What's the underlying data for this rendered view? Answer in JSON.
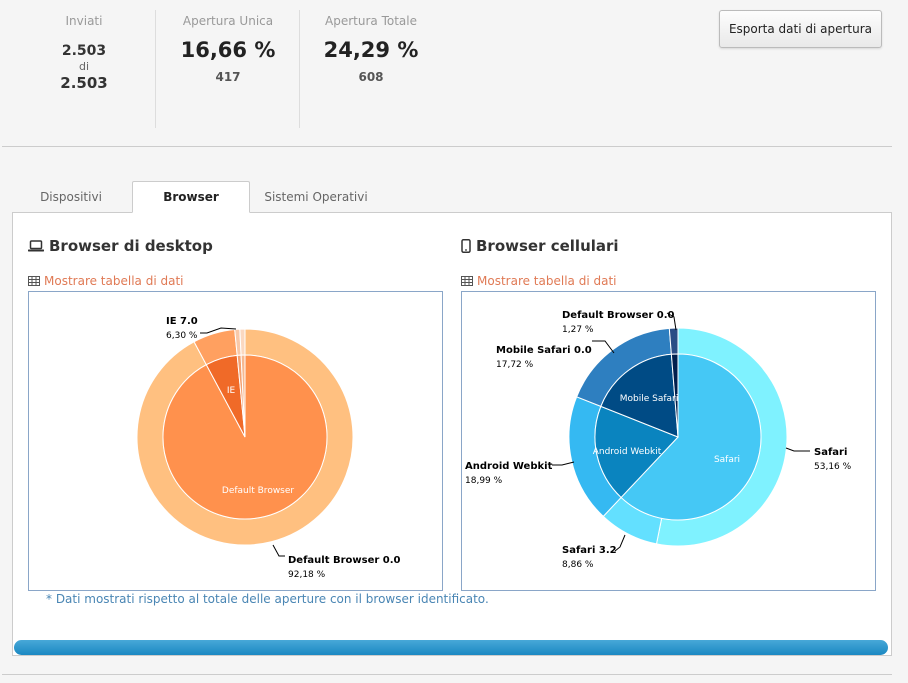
{
  "stats": {
    "sent_label": "Inviati",
    "sent_value": "2.503",
    "sent_of": "di",
    "sent_total": "2.503",
    "unique_label": "Apertura Unica",
    "unique_pct": "16,66 %",
    "unique_count": "417",
    "total_label": "Apertura Totale",
    "total_pct": "24,29 %",
    "total_count": "608"
  },
  "export_button": "Esporta dati di apertura",
  "tabs": [
    {
      "label": "Dispositivi",
      "active": false
    },
    {
      "label": "Browser",
      "active": true
    },
    {
      "label": "Sistemi Operativi",
      "active": false
    }
  ],
  "desktop": {
    "title": "Browser di desktop",
    "icon": "laptop-icon",
    "show_table": "Mostrare tabella di dati"
  },
  "mobile": {
    "title": "Browser cellulari",
    "icon": "mobile-phone-icon",
    "show_table": "Mostrare tabella di dati"
  },
  "note": "* Dati mostrati rispetto al totale delle aperture con il browser identificato.",
  "progress_fraction": 1.0,
  "chart_data": [
    {
      "type": "pie",
      "chart": "desktop",
      "inner": [
        {
          "name": "Default Browser",
          "value": 92.18,
          "color": "#ff914d",
          "label": true
        },
        {
          "name": "IE",
          "value": 6.3,
          "color": "#f06a28",
          "label": true
        },
        {
          "name": "",
          "value": 0.76,
          "color": "#f4a070",
          "label": false
        },
        {
          "name": "",
          "value": 0.76,
          "color": "#f7b890",
          "label": false
        }
      ],
      "outer": [
        {
          "name": "Default Browser 0.0",
          "pct": "92,18 %",
          "value": 92.18,
          "color": "#ffc080",
          "callout": true
        },
        {
          "name": "IE 7.0",
          "pct": "6,30 %",
          "value": 6.3,
          "color": "#ffa060",
          "callout": true
        },
        {
          "name": "",
          "pct": "",
          "value": 0.76,
          "color": "#f8c8a8",
          "callout": false
        },
        {
          "name": "",
          "pct": "",
          "value": 0.76,
          "color": "#fbd8c0",
          "callout": false
        }
      ]
    },
    {
      "type": "pie",
      "chart": "mobile",
      "inner": [
        {
          "name": "Safari",
          "value": 62.02,
          "color": "#45c8f5"
        },
        {
          "name": "Android Webkit",
          "value": 18.99,
          "color": "#0a84bf"
        },
        {
          "name": "Mobile Safari",
          "value": 17.72,
          "color": "#004b85"
        },
        {
          "name": "",
          "value": 1.27,
          "color": "#001f4d"
        }
      ],
      "outer": [
        {
          "name": "Safari",
          "pct": "53,16 %",
          "value": 53.16,
          "color": "#7ff2ff"
        },
        {
          "name": "Safari 3.2",
          "pct": "8,86 %",
          "value": 8.86,
          "color": "#63e0ff"
        },
        {
          "name": "Android Webkit",
          "pct": "18,99 %",
          "value": 18.99,
          "color": "#35b9f2"
        },
        {
          "name": "Mobile Safari 0.0",
          "pct": "17,72 %",
          "value": 17.72,
          "color": "#2e7fc0"
        },
        {
          "name": "Default Browser 0.0",
          "pct": "1,27 %",
          "value": 1.27,
          "color": "#2a4d85"
        }
      ]
    }
  ]
}
